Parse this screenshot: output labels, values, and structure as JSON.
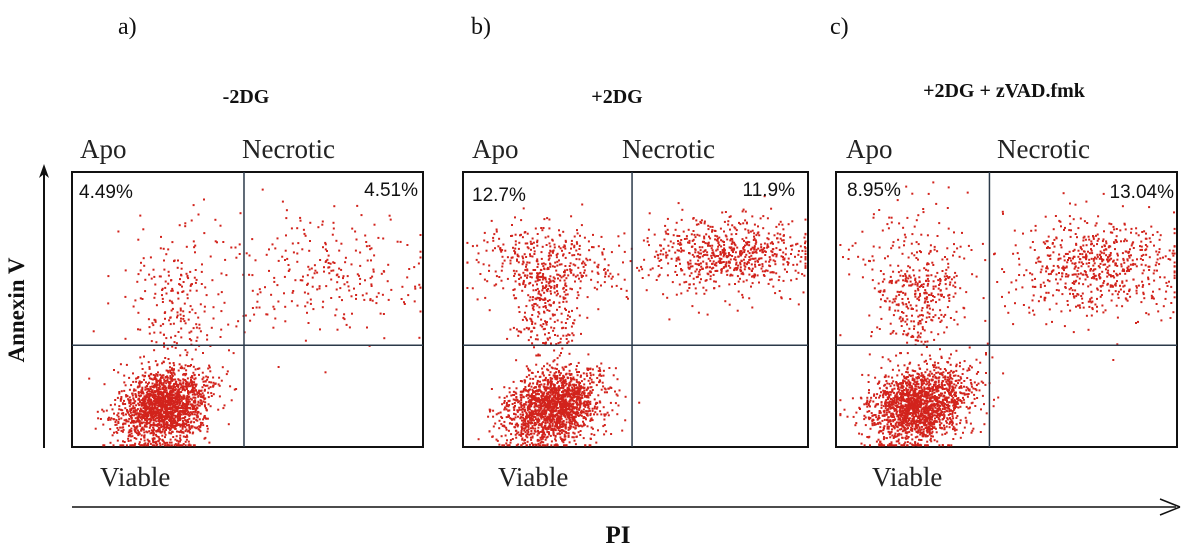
{
  "figure": {
    "y_axis_label": "Annexin V",
    "x_axis_label": "PI",
    "dot_color": "#d2231c",
    "frame_color": "#111111",
    "gate_line_color": "#2b3a4a"
  },
  "chart_data": [
    {
      "type": "scatter",
      "panel_letter": "a)",
      "title": "-2DG",
      "quadrant_labels": {
        "upper_left": "Apo",
        "upper_right": "Necrotic",
        "lower_left": "Viable"
      },
      "percentages": {
        "upper_left": "4.49%",
        "upper_right": "4.51%"
      },
      "gate": {
        "x": 0.49,
        "y": 0.37
      },
      "populations": [
        {
          "quadrant": "viable",
          "n": 1900,
          "cx": 0.26,
          "cy": 0.15,
          "sx": 0.06,
          "sy": 0.07
        },
        {
          "quadrant": "apo",
          "n": 230,
          "cx": 0.3,
          "cy": 0.58,
          "sx": 0.09,
          "sy": 0.16
        },
        {
          "quadrant": "necrotic",
          "n": 260,
          "cx": 0.73,
          "cy": 0.64,
          "sx": 0.14,
          "sy": 0.12
        }
      ]
    },
    {
      "type": "scatter",
      "panel_letter": "b)",
      "title": "+2DG",
      "quadrant_labels": {
        "upper_left": "Apo",
        "upper_right": "Necrotic",
        "lower_left": "Viable"
      },
      "percentages": {
        "upper_left": "12.7%",
        "upper_right": "11.9%"
      },
      "gate": {
        "x": 0.49,
        "y": 0.37
      },
      "populations": [
        {
          "quadrant": "viable",
          "n": 1800,
          "cx": 0.26,
          "cy": 0.15,
          "sx": 0.07,
          "sy": 0.07
        },
        {
          "quadrant": "apo",
          "n": 600,
          "cx": 0.24,
          "cy": 0.68,
          "sx": 0.1,
          "sy": 0.07
        },
        {
          "quadrant": "necrotic",
          "n": 700,
          "cx": 0.77,
          "cy": 0.7,
          "sx": 0.12,
          "sy": 0.07
        }
      ]
    },
    {
      "type": "scatter",
      "panel_letter": "c)",
      "title": "+2DG + zVAD.fmk",
      "quadrant_labels": {
        "upper_left": "Apo",
        "upper_right": "Necrotic",
        "lower_left": "Viable"
      },
      "percentages": {
        "upper_left": "8.95%",
        "upper_right": "13.04%"
      },
      "gate": {
        "x": 0.45,
        "y": 0.37
      },
      "populations": [
        {
          "quadrant": "viable",
          "n": 1800,
          "cx": 0.24,
          "cy": 0.15,
          "sx": 0.07,
          "sy": 0.07
        },
        {
          "quadrant": "apo",
          "n": 420,
          "cx": 0.23,
          "cy": 0.63,
          "sx": 0.09,
          "sy": 0.12
        },
        {
          "quadrant": "necrotic",
          "n": 650,
          "cx": 0.76,
          "cy": 0.66,
          "sx": 0.12,
          "sy": 0.09
        }
      ]
    }
  ]
}
